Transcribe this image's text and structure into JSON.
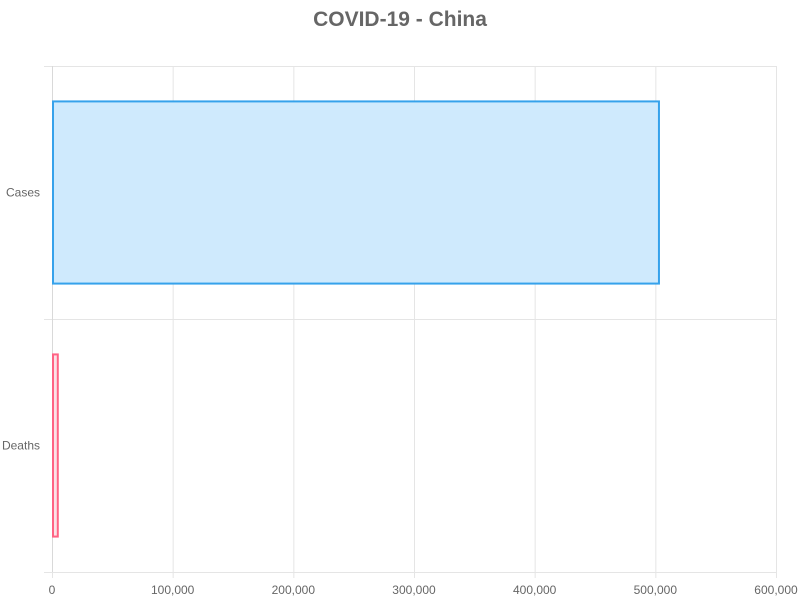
{
  "chart_data": {
    "type": "bar",
    "orientation": "horizontal",
    "title": "COVID-19 - China",
    "categories": [
      "Cases",
      "Deaths"
    ],
    "values": [
      503000,
      4800
    ],
    "xlim": [
      0,
      600000
    ],
    "x_ticks": [
      0,
      100000,
      200000,
      300000,
      400000,
      500000,
      600000
    ],
    "x_tick_labels": [
      "0",
      "100,000",
      "200,000",
      "300,000",
      "400,000",
      "500,000",
      "600,000"
    ],
    "grid": true,
    "legend": "none",
    "colors": {
      "fill": [
        "#cfeafd",
        "#fbe2e7"
      ],
      "stroke": [
        "#36a2eb",
        "#ff6384"
      ],
      "grid": "#e5e5e5",
      "text": "#666666"
    }
  }
}
